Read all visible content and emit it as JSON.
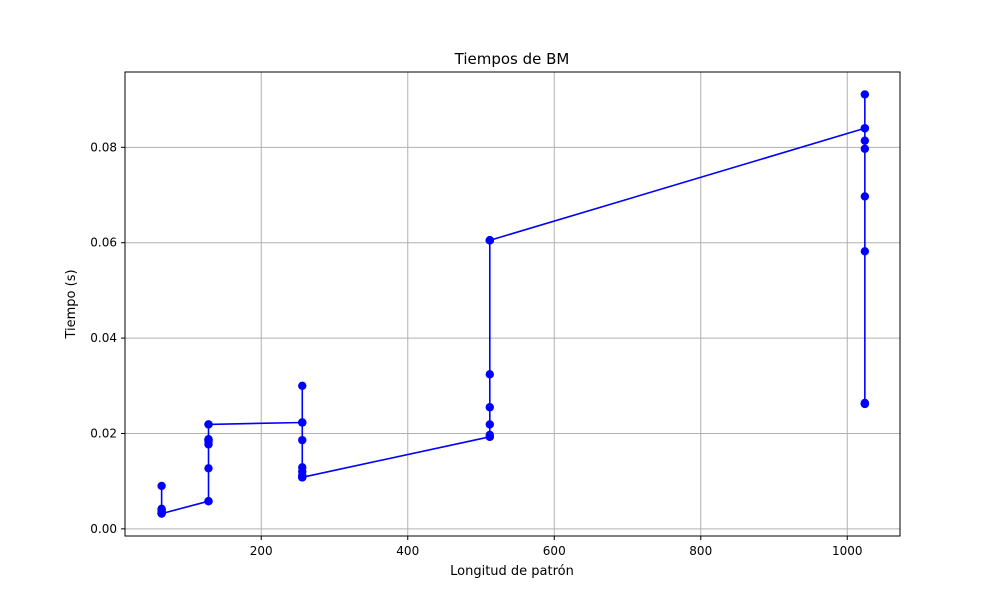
{
  "chart_data": {
    "type": "line",
    "title": "Tiempos de BM",
    "xlabel": "Longitud de patrón",
    "ylabel": "Tiempo (s)",
    "xlim": [
      14,
      1072
    ],
    "ylim": [
      -0.0015,
      0.0958
    ],
    "xticks": [
      200,
      400,
      600,
      800,
      1000
    ],
    "xtick_labels": [
      "200",
      "400",
      "600",
      "800",
      "1000"
    ],
    "yticks": [
      0.0,
      0.02,
      0.04,
      0.06,
      0.08
    ],
    "ytick_labels": [
      "0.00",
      "0.02",
      "0.04",
      "0.06",
      "0.08"
    ],
    "grid": true,
    "marker": "circle",
    "color": "#0000ff",
    "series": [
      {
        "x": [
          64,
          64,
          64,
          64,
          64,
          64,
          64,
          64,
          64,
          64,
          128,
          128,
          128,
          128,
          128,
          128,
          128,
          128,
          128,
          128,
          256,
          256,
          256,
          256,
          256,
          256,
          256,
          256,
          256,
          256,
          512,
          512,
          512,
          512,
          512,
          512,
          512,
          512,
          512,
          512,
          1024,
          1024,
          1024,
          1024,
          1024,
          1024,
          1024,
          1024,
          1024,
          1024
        ],
        "y": [
          0.009,
          0.0042,
          0.004,
          0.0039,
          0.0036,
          0.0034,
          0.0033,
          0.0033,
          0.0032,
          0.0032,
          0.0058,
          0.0058,
          0.0127,
          0.0177,
          0.0183,
          0.0186,
          0.0188,
          0.0187,
          0.0219,
          0.0219,
          0.0223,
          0.0223,
          0.0186,
          0.03,
          0.0129,
          0.012,
          0.0112,
          0.0109,
          0.0108,
          0.0108,
          0.0193,
          0.0193,
          0.0197,
          0.0219,
          0.0255,
          0.0324,
          0.0605,
          0.0605,
          0.0605,
          0.0605,
          0.084,
          0.084,
          0.0911,
          0.0814,
          0.0797,
          0.0697,
          0.0582,
          0.0264,
          0.0262,
          0.0262
        ]
      }
    ]
  }
}
